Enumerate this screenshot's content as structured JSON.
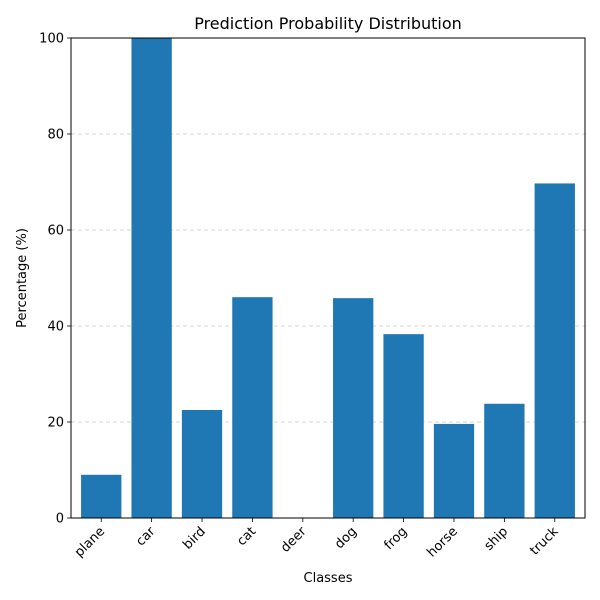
{
  "chart_data": {
    "type": "bar",
    "title": "Prediction Probability Distribution",
    "xlabel": "Classes",
    "ylabel": "Percentage (%)",
    "categories": [
      "plane",
      "car",
      "bird",
      "cat",
      "deer",
      "dog",
      "frog",
      "horse",
      "ship",
      "truck"
    ],
    "values": [
      9.0,
      100.0,
      22.5,
      46.0,
      0.0,
      45.8,
      38.3,
      19.6,
      23.8,
      69.7
    ],
    "ylim": [
      0,
      100
    ],
    "yticks": [
      "0",
      "20",
      "40",
      "60",
      "80",
      "100"
    ],
    "grid": "y-dashed",
    "bar_color": "#1f77b4",
    "grid_color": "#c8c8c8"
  }
}
